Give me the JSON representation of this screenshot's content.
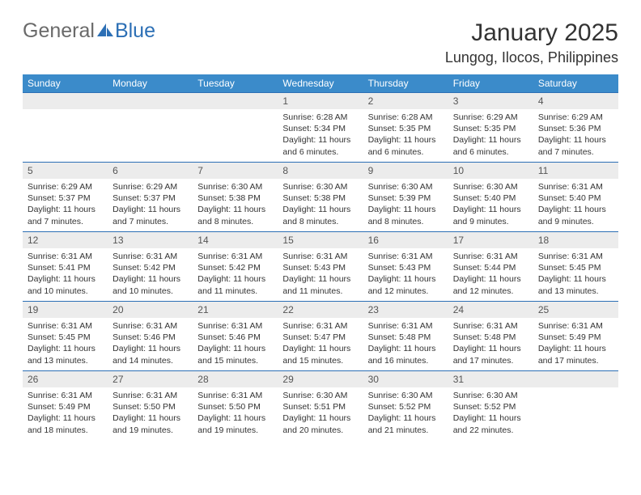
{
  "brand": {
    "part1": "General",
    "part2": "Blue",
    "logo_color": "#2c6fb5",
    "text_color": "#6a6a6a"
  },
  "title": "January 2025",
  "location": "Lungog, Ilocos, Philippines",
  "colors": {
    "header_bg": "#3b8bca",
    "header_text": "#ffffff",
    "daynum_bg": "#ececec",
    "cell_border": "#2c6fb5",
    "body_text": "#333333"
  },
  "fonts": {
    "title_size": 30,
    "location_size": 18,
    "weekday_size": 12,
    "daynum_size": 12,
    "body_size": 10.5
  },
  "weekdays": [
    "Sunday",
    "Monday",
    "Tuesday",
    "Wednesday",
    "Thursday",
    "Friday",
    "Saturday"
  ],
  "weeks": [
    [
      {
        "empty": true
      },
      {
        "empty": true
      },
      {
        "empty": true
      },
      {
        "num": "1",
        "sunrise": "6:28 AM",
        "sunset": "5:34 PM",
        "daylight": "11 hours and 6 minutes."
      },
      {
        "num": "2",
        "sunrise": "6:28 AM",
        "sunset": "5:35 PM",
        "daylight": "11 hours and 6 minutes."
      },
      {
        "num": "3",
        "sunrise": "6:29 AM",
        "sunset": "5:35 PM",
        "daylight": "11 hours and 6 minutes."
      },
      {
        "num": "4",
        "sunrise": "6:29 AM",
        "sunset": "5:36 PM",
        "daylight": "11 hours and 7 minutes."
      }
    ],
    [
      {
        "num": "5",
        "sunrise": "6:29 AM",
        "sunset": "5:37 PM",
        "daylight": "11 hours and 7 minutes."
      },
      {
        "num": "6",
        "sunrise": "6:29 AM",
        "sunset": "5:37 PM",
        "daylight": "11 hours and 7 minutes."
      },
      {
        "num": "7",
        "sunrise": "6:30 AM",
        "sunset": "5:38 PM",
        "daylight": "11 hours and 8 minutes."
      },
      {
        "num": "8",
        "sunrise": "6:30 AM",
        "sunset": "5:38 PM",
        "daylight": "11 hours and 8 minutes."
      },
      {
        "num": "9",
        "sunrise": "6:30 AM",
        "sunset": "5:39 PM",
        "daylight": "11 hours and 8 minutes."
      },
      {
        "num": "10",
        "sunrise": "6:30 AM",
        "sunset": "5:40 PM",
        "daylight": "11 hours and 9 minutes."
      },
      {
        "num": "11",
        "sunrise": "6:31 AM",
        "sunset": "5:40 PM",
        "daylight": "11 hours and 9 minutes."
      }
    ],
    [
      {
        "num": "12",
        "sunrise": "6:31 AM",
        "sunset": "5:41 PM",
        "daylight": "11 hours and 10 minutes."
      },
      {
        "num": "13",
        "sunrise": "6:31 AM",
        "sunset": "5:42 PM",
        "daylight": "11 hours and 10 minutes."
      },
      {
        "num": "14",
        "sunrise": "6:31 AM",
        "sunset": "5:42 PM",
        "daylight": "11 hours and 11 minutes."
      },
      {
        "num": "15",
        "sunrise": "6:31 AM",
        "sunset": "5:43 PM",
        "daylight": "11 hours and 11 minutes."
      },
      {
        "num": "16",
        "sunrise": "6:31 AM",
        "sunset": "5:43 PM",
        "daylight": "11 hours and 12 minutes."
      },
      {
        "num": "17",
        "sunrise": "6:31 AM",
        "sunset": "5:44 PM",
        "daylight": "11 hours and 12 minutes."
      },
      {
        "num": "18",
        "sunrise": "6:31 AM",
        "sunset": "5:45 PM",
        "daylight": "11 hours and 13 minutes."
      }
    ],
    [
      {
        "num": "19",
        "sunrise": "6:31 AM",
        "sunset": "5:45 PM",
        "daylight": "11 hours and 13 minutes."
      },
      {
        "num": "20",
        "sunrise": "6:31 AM",
        "sunset": "5:46 PM",
        "daylight": "11 hours and 14 minutes."
      },
      {
        "num": "21",
        "sunrise": "6:31 AM",
        "sunset": "5:46 PM",
        "daylight": "11 hours and 15 minutes."
      },
      {
        "num": "22",
        "sunrise": "6:31 AM",
        "sunset": "5:47 PM",
        "daylight": "11 hours and 15 minutes."
      },
      {
        "num": "23",
        "sunrise": "6:31 AM",
        "sunset": "5:48 PM",
        "daylight": "11 hours and 16 minutes."
      },
      {
        "num": "24",
        "sunrise": "6:31 AM",
        "sunset": "5:48 PM",
        "daylight": "11 hours and 17 minutes."
      },
      {
        "num": "25",
        "sunrise": "6:31 AM",
        "sunset": "5:49 PM",
        "daylight": "11 hours and 17 minutes."
      }
    ],
    [
      {
        "num": "26",
        "sunrise": "6:31 AM",
        "sunset": "5:49 PM",
        "daylight": "11 hours and 18 minutes."
      },
      {
        "num": "27",
        "sunrise": "6:31 AM",
        "sunset": "5:50 PM",
        "daylight": "11 hours and 19 minutes."
      },
      {
        "num": "28",
        "sunrise": "6:31 AM",
        "sunset": "5:50 PM",
        "daylight": "11 hours and 19 minutes."
      },
      {
        "num": "29",
        "sunrise": "6:30 AM",
        "sunset": "5:51 PM",
        "daylight": "11 hours and 20 minutes."
      },
      {
        "num": "30",
        "sunrise": "6:30 AM",
        "sunset": "5:52 PM",
        "daylight": "11 hours and 21 minutes."
      },
      {
        "num": "31",
        "sunrise": "6:30 AM",
        "sunset": "5:52 PM",
        "daylight": "11 hours and 22 minutes."
      },
      {
        "empty": true
      }
    ]
  ],
  "labels": {
    "sunrise": "Sunrise:",
    "sunset": "Sunset:",
    "daylight": "Daylight:"
  }
}
